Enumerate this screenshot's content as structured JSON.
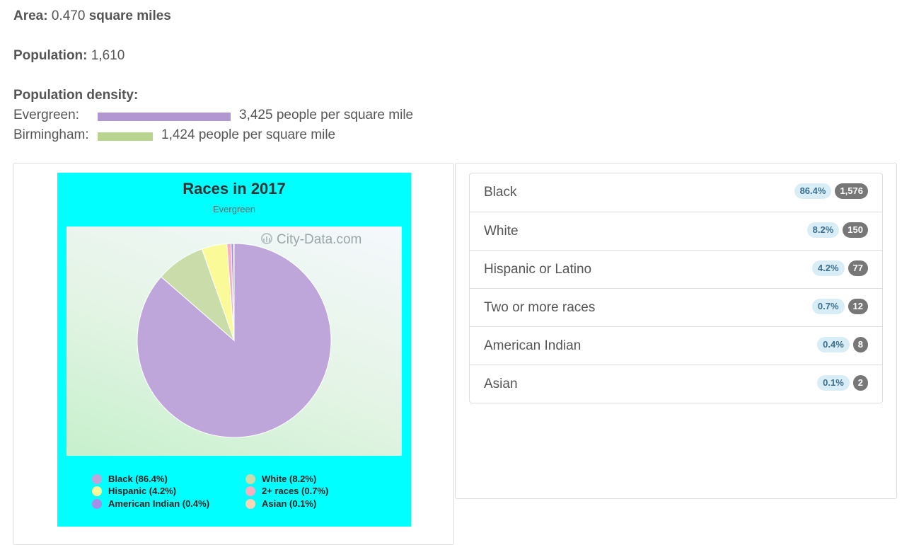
{
  "stats": {
    "area": {
      "label": "Area:",
      "value": "0.470",
      "unit": "square miles"
    },
    "population": {
      "label": "Population:",
      "value": "1,610"
    },
    "density": {
      "label": "Population density:",
      "rows": [
        {
          "name": "Evergreen:",
          "value_text": "3,425 people per square mile",
          "value": 3425,
          "color": "#b196d1"
        },
        {
          "name": "Birmingham:",
          "value_text": "1,424 people per square mile",
          "value": 1424,
          "color": "#b8d48e"
        }
      ]
    }
  },
  "chart_data": {
    "type": "pie",
    "title": "Races in 2017",
    "subtitle": "Evergreen",
    "watermark": "City-Data.com",
    "categories": [
      "Black",
      "White",
      "Hispanic",
      "2+ races",
      "American Indian",
      "Asian"
    ],
    "values": [
      86.4,
      8.2,
      4.2,
      0.7,
      0.4,
      0.1
    ],
    "colors": [
      "#bea6da",
      "#c9dcaa",
      "#fbfa99",
      "#f6b0bf",
      "#a58ee8",
      "#f8d6b6"
    ],
    "background": "#00ffff",
    "legend": [
      {
        "label": "Black (86.4%)",
        "color": "#bea6da"
      },
      {
        "label": "White (8.2%)",
        "color": "#c9dcaa"
      },
      {
        "label": "Hispanic (4.2%)",
        "color": "#fbfa99"
      },
      {
        "label": "2+ races (0.7%)",
        "color": "#f6b0bf"
      },
      {
        "label": "American Indian (0.4%)",
        "color": "#a58ee8"
      },
      {
        "label": "Asian (0.1%)",
        "color": "#f8d6b6"
      }
    ],
    "legend_position": "bottom"
  },
  "race_list": [
    {
      "name": "Black",
      "percent": "86.4%",
      "count": "1,576"
    },
    {
      "name": "White",
      "percent": "8.2%",
      "count": "150"
    },
    {
      "name": "Hispanic or Latino",
      "percent": "4.2%",
      "count": "77"
    },
    {
      "name": "Two or more races",
      "percent": "0.7%",
      "count": "12"
    },
    {
      "name": "American Indian",
      "percent": "0.4%",
      "count": "8"
    },
    {
      "name": "Asian",
      "percent": "0.1%",
      "count": "2"
    }
  ]
}
